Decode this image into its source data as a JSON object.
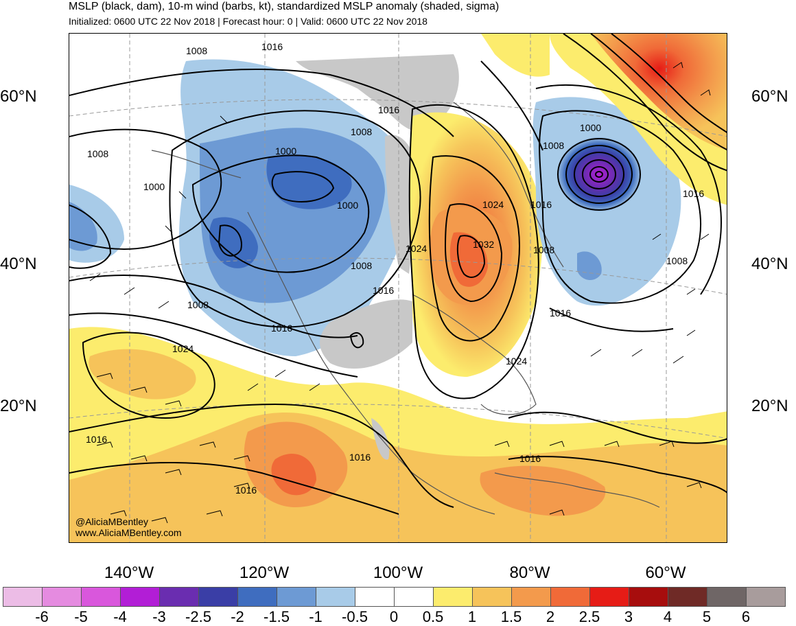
{
  "header": {
    "title": "MSLP (black, dam), 10-m wind (barbs, kt), standardized MSLP anomaly (shaded, sigma)",
    "subtitle": "Initialized: 0600 UTC 22 Nov 2018 | Forecast hour: 0 | Valid: 0600 UTC 22 Nov 2018"
  },
  "map": {
    "lat_labels_left": [
      "60°N",
      "40°N",
      "20°N"
    ],
    "lat_labels_right": [
      "60°N",
      "40°N",
      "20°N"
    ],
    "lon_labels": [
      "140°W",
      "120°W",
      "100°W",
      "80°W",
      "60°W"
    ],
    "credit_handle": "@AliciaMBentley",
    "credit_site": "www.AliciaMBentley.com",
    "contour_labels": [
      "1008",
      "1016",
      "1016",
      "1008",
      "1000",
      "1008",
      "1000",
      "1000",
      "1008",
      "1016",
      "1008",
      "1016",
      "1024",
      "1024",
      "1024",
      "1032",
      "1016",
      "1008",
      "1016",
      "1024",
      "1016",
      "1016",
      "1016",
      "1016",
      "1000",
      "1008",
      "1016",
      "1008"
    ],
    "high_pressure_center": "1032",
    "low_pressure_center": "1000",
    "colors": {
      "land_gray": "#c8c8c8",
      "coast": "#555555",
      "contour": "#000000"
    }
  },
  "colorbar": {
    "labels": [
      "-6",
      "-5",
      "-4",
      "-3",
      "-2.5",
      "-2",
      "-1.5",
      "-1",
      "-0.5",
      "0",
      "0.5",
      "1",
      "1.5",
      "2",
      "2.5",
      "3",
      "4",
      "5",
      "6"
    ],
    "colors": [
      "#ecbce6",
      "#e58be0",
      "#d957dc",
      "#b21ed6",
      "#6a2db0",
      "#3a3ea6",
      "#3f6dbf",
      "#6d9ad4",
      "#a8cbe8",
      "#ffffff",
      "#ffffff",
      "#fcec6d",
      "#f6c35a",
      "#f39a4c",
      "#f06a38",
      "#e61c16",
      "#a70d0d",
      "#6f2a26",
      "#6f6666",
      "#a89c9c"
    ]
  }
}
